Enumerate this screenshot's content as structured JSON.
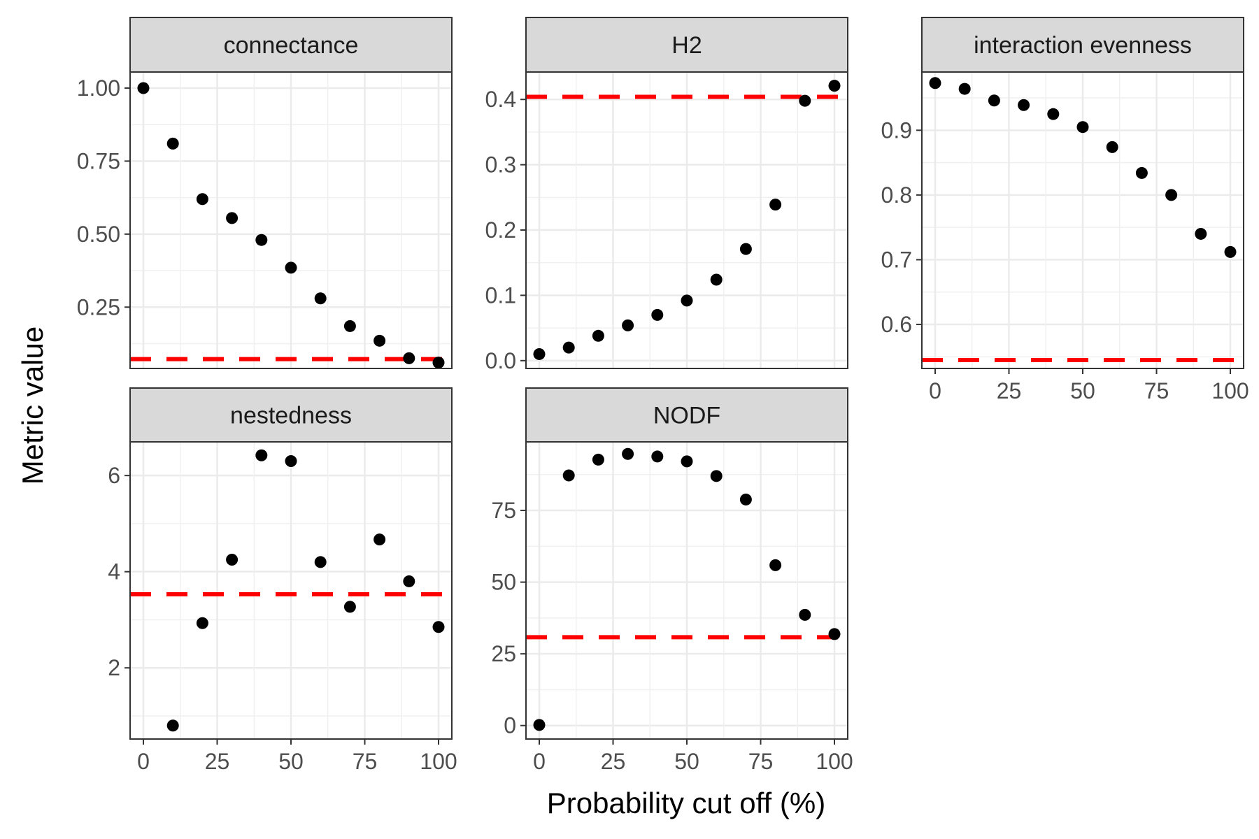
{
  "chart_data": {
    "type": "scatter",
    "xlabel": "Probability cut off (%)",
    "ylabel": "Metric value",
    "grid": true,
    "reference_line_color": "#ff0000",
    "point_color": "#000000",
    "x": [
      0,
      10,
      20,
      30,
      40,
      50,
      60,
      70,
      80,
      90,
      100
    ],
    "xlim": [
      -4.5,
      104.5
    ],
    "x_ticks": [
      0,
      25,
      50,
      75,
      100
    ],
    "panels": [
      {
        "title": "connectance",
        "y": [
          1.0,
          0.81,
          0.62,
          0.555,
          0.48,
          0.385,
          0.28,
          0.185,
          0.135,
          0.075,
          0.06
        ],
        "reference_line": 0.072,
        "ylim": [
          0.04,
          1.055
        ],
        "y_ticks": [
          "0.25",
          "0.50",
          "0.75",
          "1.00"
        ]
      },
      {
        "title": "H2",
        "y": [
          0.01,
          0.02,
          0.038,
          0.054,
          0.07,
          0.092,
          0.124,
          0.171,
          0.239,
          0.398,
          0.421
        ],
        "reference_line": 0.404,
        "ylim": [
          -0.012,
          0.442
        ],
        "y_ticks": [
          "0.0",
          "0.1",
          "0.2",
          "0.3",
          "0.4"
        ]
      },
      {
        "title": "interaction evenness",
        "y": [
          0.973,
          0.964,
          0.946,
          0.939,
          0.925,
          0.905,
          0.874,
          0.834,
          0.8,
          0.74,
          0.712
        ],
        "reference_line": 0.545,
        "ylim": [
          0.532,
          0.99
        ],
        "y_ticks": [
          "0.6",
          "0.7",
          "0.8",
          "0.9"
        ]
      },
      {
        "title": "nestedness",
        "y": [
          null,
          0.8,
          2.93,
          4.25,
          6.42,
          6.3,
          4.2,
          3.27,
          4.67,
          3.8,
          2.85
        ],
        "reference_line": 3.53,
        "ylim": [
          0.52,
          6.7
        ],
        "y_ticks": [
          "2",
          "4",
          "6"
        ]
      },
      {
        "title": "NODF",
        "y": [
          0.2,
          87.2,
          92.7,
          94.7,
          93.8,
          92.1,
          87.0,
          78.8,
          55.9,
          38.6,
          31.9
        ],
        "reference_line": 30.8,
        "ylim": [
          -4.7,
          98.9
        ],
        "y_ticks": [
          "0",
          "25",
          "50",
          "75"
        ]
      }
    ]
  }
}
